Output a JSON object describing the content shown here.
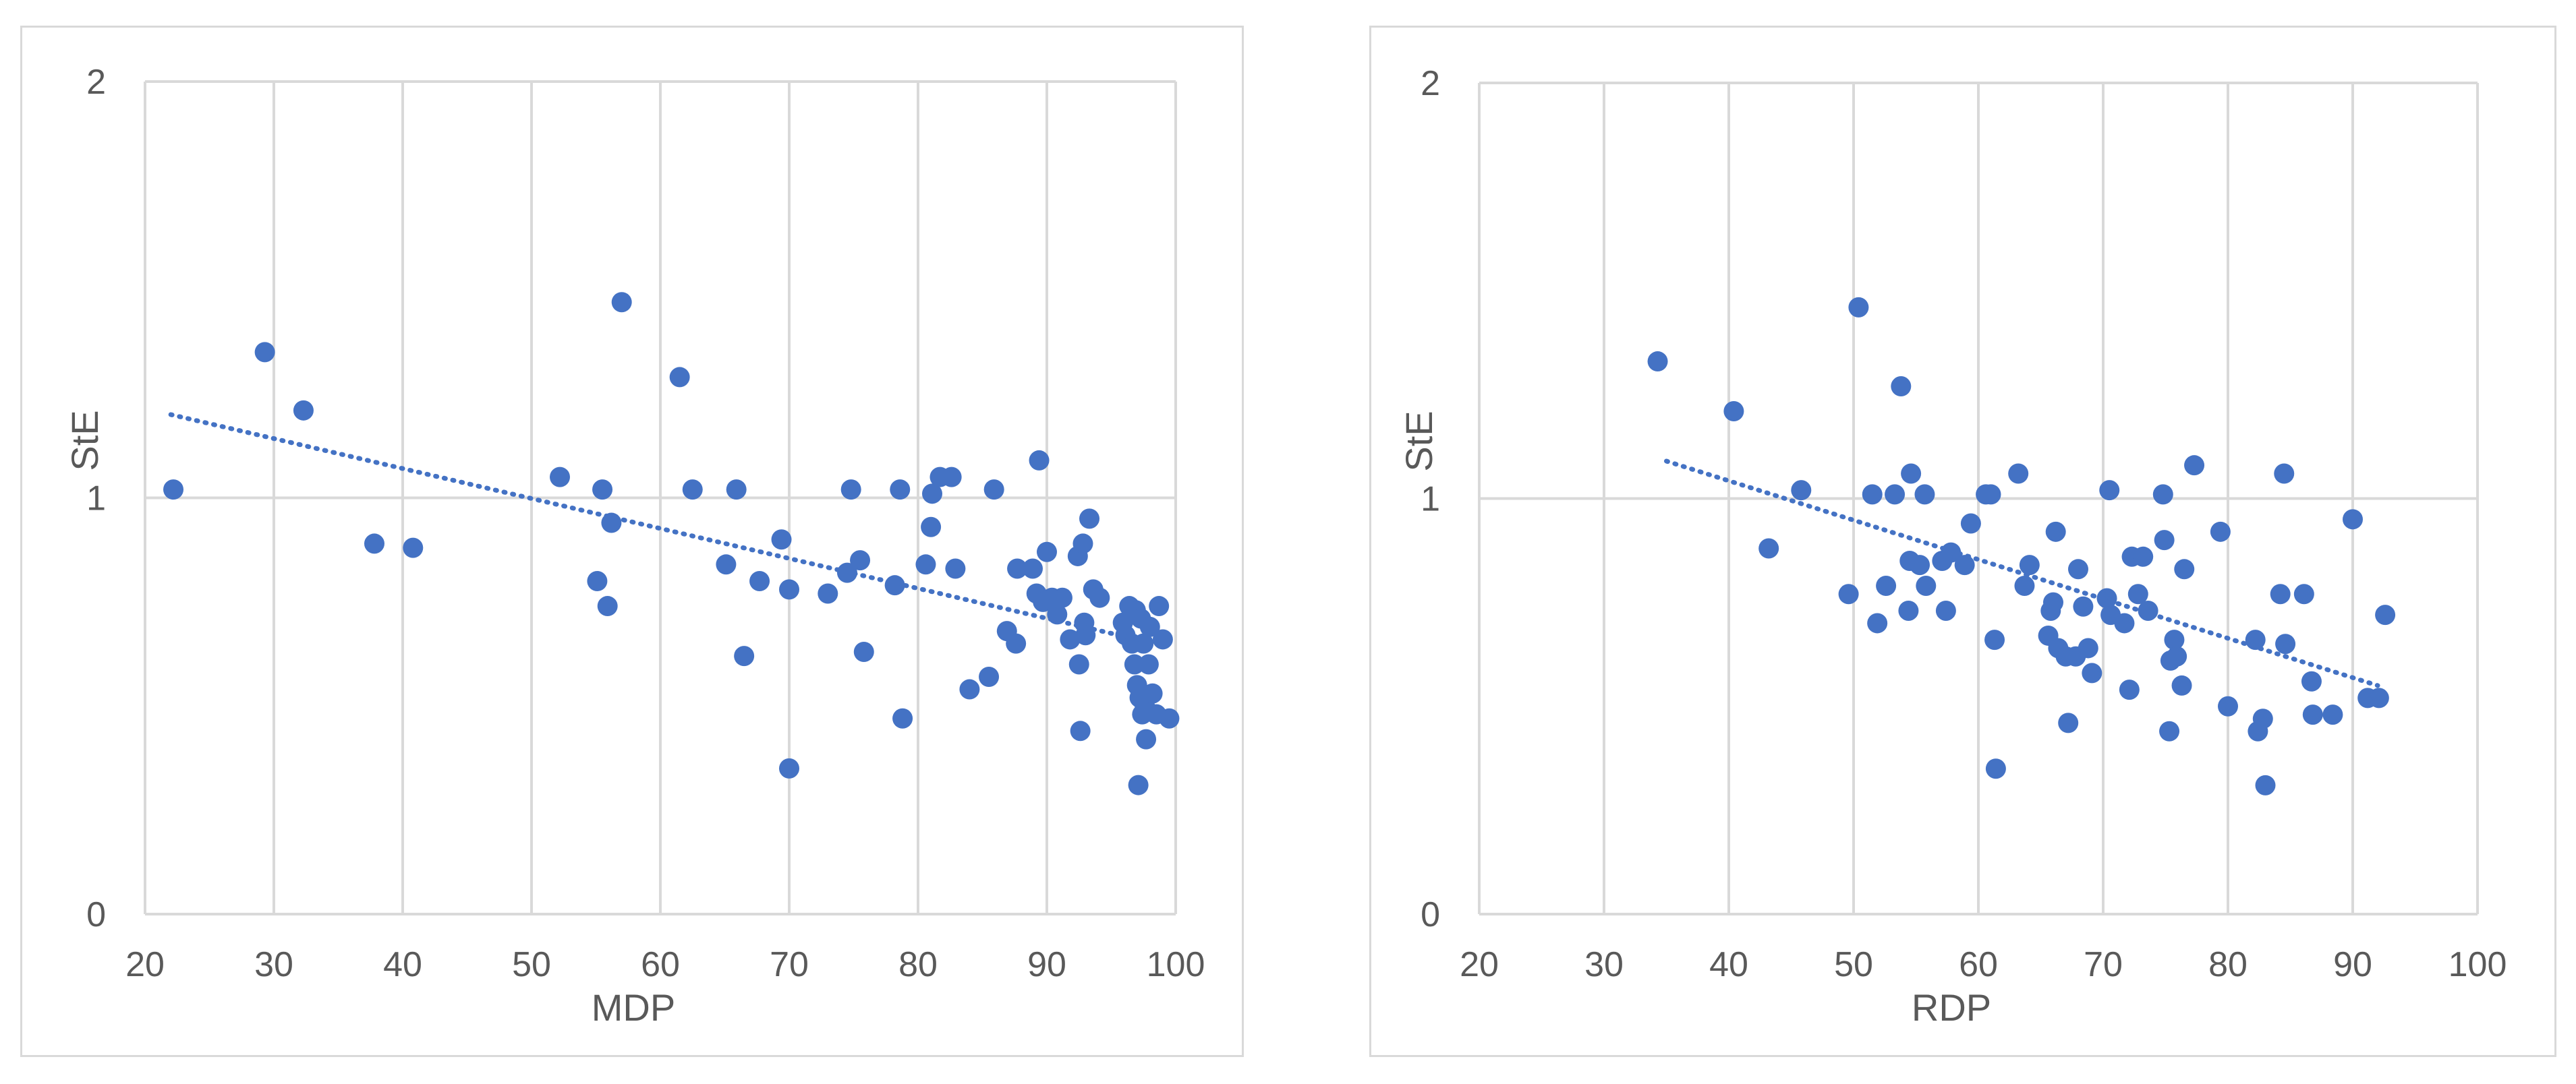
{
  "chart_data": [
    {
      "type": "scatter",
      "title": "",
      "xlabel": "MDP",
      "ylabel": "StE",
      "xlim": [
        20,
        100
      ],
      "ylim": [
        0,
        2
      ],
      "x_ticks": [
        "20",
        "30",
        "40",
        "50",
        "60",
        "70",
        "80",
        "90",
        "100"
      ],
      "y_ticks": [
        "0",
        "1",
        "2"
      ],
      "grid": "vertical and horizontal",
      "legend": "none",
      "color": "#4472c4",
      "trendline": {
        "style": "dotted linear",
        "x": [
          22,
          97
        ],
        "y": [
          1.2,
          0.66
        ]
      },
      "points": [
        [
          22.2,
          1.02
        ],
        [
          29.3,
          1.35
        ],
        [
          32.3,
          1.21
        ],
        [
          37.8,
          0.89
        ],
        [
          40.8,
          0.88
        ],
        [
          52.2,
          1.05
        ],
        [
          55.1,
          0.8
        ],
        [
          55.5,
          1.02
        ],
        [
          55.9,
          0.74
        ],
        [
          56.2,
          0.94
        ],
        [
          57.0,
          1.47
        ],
        [
          61.5,
          1.29
        ],
        [
          62.5,
          1.02
        ],
        [
          65.1,
          0.84
        ],
        [
          65.9,
          1.02
        ],
        [
          66.5,
          0.62
        ],
        [
          67.7,
          0.8
        ],
        [
          69.4,
          0.9
        ],
        [
          70.0,
          0.35
        ],
        [
          70.0,
          0.78
        ],
        [
          73.0,
          0.77
        ],
        [
          74.5,
          0.82
        ],
        [
          74.8,
          1.02
        ],
        [
          75.5,
          0.85
        ],
        [
          75.8,
          0.63
        ],
        [
          78.2,
          0.79
        ],
        [
          78.6,
          1.02
        ],
        [
          78.8,
          0.47
        ],
        [
          80.6,
          0.84
        ],
        [
          81.0,
          0.93
        ],
        [
          81.1,
          1.01
        ],
        [
          81.7,
          1.05
        ],
        [
          82.6,
          1.05
        ],
        [
          82.9,
          0.83
        ],
        [
          84.0,
          0.54
        ],
        [
          85.5,
          0.57
        ],
        [
          85.9,
          1.02
        ],
        [
          86.9,
          0.68
        ],
        [
          87.6,
          0.65
        ],
        [
          87.7,
          0.83
        ],
        [
          88.9,
          0.83
        ],
        [
          89.2,
          0.77
        ],
        [
          89.4,
          1.09
        ],
        [
          89.7,
          0.75
        ],
        [
          90.0,
          0.87
        ],
        [
          90.4,
          0.76
        ],
        [
          90.8,
          0.72
        ],
        [
          91.2,
          0.76
        ],
        [
          91.8,
          0.66
        ],
        [
          92.4,
          0.86
        ],
        [
          92.5,
          0.6
        ],
        [
          92.6,
          0.44
        ],
        [
          92.8,
          0.89
        ],
        [
          92.9,
          0.7
        ],
        [
          93.0,
          0.67
        ],
        [
          93.3,
          0.95
        ],
        [
          93.6,
          0.78
        ],
        [
          94.1,
          0.76
        ],
        [
          95.9,
          0.7
        ],
        [
          96.1,
          0.67
        ],
        [
          96.4,
          0.74
        ],
        [
          96.6,
          0.65
        ],
        [
          96.8,
          0.6
        ],
        [
          96.9,
          0.73
        ],
        [
          97.0,
          0.55
        ],
        [
          97.1,
          0.31
        ],
        [
          97.2,
          0.52
        ],
        [
          97.3,
          0.71
        ],
        [
          97.4,
          0.48
        ],
        [
          97.5,
          0.65
        ],
        [
          97.6,
          0.5
        ],
        [
          97.7,
          0.42
        ],
        [
          97.9,
          0.6
        ],
        [
          98.0,
          0.69
        ],
        [
          98.2,
          0.53
        ],
        [
          98.5,
          0.48
        ],
        [
          98.7,
          0.74
        ],
        [
          99.0,
          0.66
        ],
        [
          99.5,
          0.47
        ]
      ]
    },
    {
      "type": "scatter",
      "title": "",
      "xlabel": "RDP",
      "ylabel": "StE",
      "xlim": [
        20,
        100
      ],
      "ylim": [
        0,
        2
      ],
      "x_ticks": [
        "20",
        "30",
        "40",
        "50",
        "60",
        "70",
        "80",
        "90",
        "100"
      ],
      "y_ticks": [
        "0",
        "1",
        "2"
      ],
      "grid": "vertical and horizontal",
      "legend": "none",
      "color": "#4472c4",
      "trendline": {
        "style": "dotted linear",
        "x": [
          35,
          92
        ],
        "y": [
          1.09,
          0.55
        ]
      },
      "points": [
        [
          34.3,
          1.33
        ],
        [
          40.4,
          1.21
        ],
        [
          43.2,
          0.88
        ],
        [
          45.8,
          1.02
        ],
        [
          49.6,
          0.77
        ],
        [
          50.4,
          1.46
        ],
        [
          51.5,
          1.01
        ],
        [
          51.9,
          0.7
        ],
        [
          52.6,
          0.79
        ],
        [
          53.3,
          1.01
        ],
        [
          53.8,
          1.27
        ],
        [
          54.4,
          0.73
        ],
        [
          54.5,
          0.85
        ],
        [
          54.6,
          1.06
        ],
        [
          55.3,
          0.84
        ],
        [
          55.7,
          1.01
        ],
        [
          55.8,
          0.79
        ],
        [
          57.1,
          0.85
        ],
        [
          57.4,
          0.73
        ],
        [
          57.8,
          0.87
        ],
        [
          58.9,
          0.84
        ],
        [
          59.4,
          0.94
        ],
        [
          60.6,
          1.01
        ],
        [
          61.0,
          1.01
        ],
        [
          61.3,
          0.66
        ],
        [
          61.4,
          0.35
        ],
        [
          63.2,
          1.06
        ],
        [
          63.7,
          0.79
        ],
        [
          64.1,
          0.84
        ],
        [
          65.6,
          0.67
        ],
        [
          65.8,
          0.73
        ],
        [
          66.0,
          0.75
        ],
        [
          66.2,
          0.92
        ],
        [
          66.4,
          0.64
        ],
        [
          67.0,
          0.62
        ],
        [
          67.2,
          0.46
        ],
        [
          67.8,
          0.62
        ],
        [
          68.0,
          0.83
        ],
        [
          68.4,
          0.74
        ],
        [
          68.8,
          0.64
        ],
        [
          69.1,
          0.58
        ],
        [
          70.3,
          0.76
        ],
        [
          70.5,
          1.02
        ],
        [
          70.6,
          0.72
        ],
        [
          71.7,
          0.7
        ],
        [
          72.1,
          0.54
        ],
        [
          72.3,
          0.86
        ],
        [
          72.8,
          0.77
        ],
        [
          73.2,
          0.86
        ],
        [
          73.6,
          0.73
        ],
        [
          74.8,
          1.01
        ],
        [
          74.9,
          0.9
        ],
        [
          75.3,
          0.44
        ],
        [
          75.4,
          0.61
        ],
        [
          75.7,
          0.66
        ],
        [
          75.9,
          0.62
        ],
        [
          76.3,
          0.55
        ],
        [
          76.5,
          0.83
        ],
        [
          77.3,
          1.08
        ],
        [
          79.4,
          0.92
        ],
        [
          80.0,
          0.5
        ],
        [
          82.2,
          0.66
        ],
        [
          82.4,
          0.44
        ],
        [
          82.8,
          0.47
        ],
        [
          83.0,
          0.31
        ],
        [
          84.2,
          0.77
        ],
        [
          84.5,
          1.06
        ],
        [
          84.6,
          0.65
        ],
        [
          86.1,
          0.77
        ],
        [
          86.7,
          0.56
        ],
        [
          86.8,
          0.48
        ],
        [
          88.4,
          0.48
        ],
        [
          90.0,
          0.95
        ],
        [
          91.2,
          0.52
        ],
        [
          92.1,
          0.52
        ],
        [
          92.6,
          0.72
        ]
      ]
    }
  ]
}
